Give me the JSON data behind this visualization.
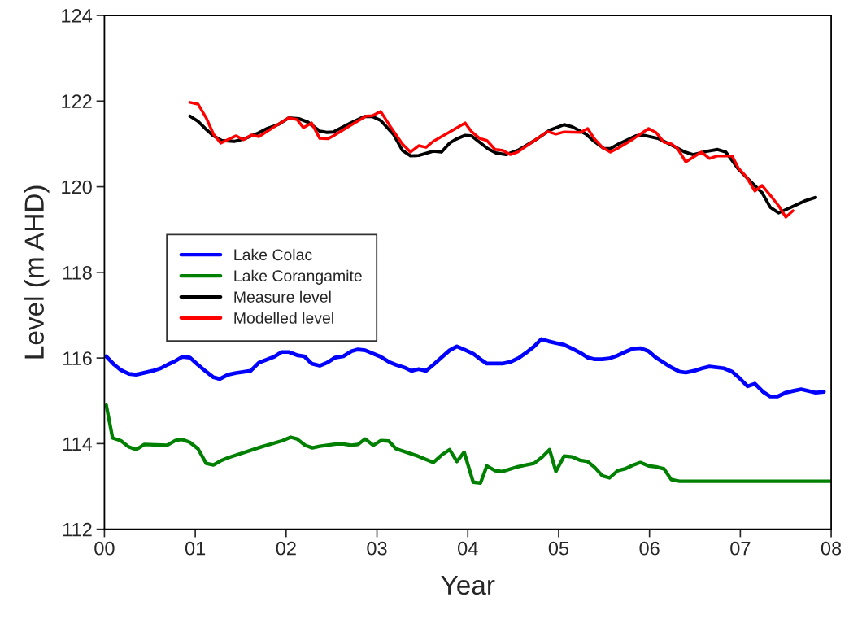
{
  "chart_data": {
    "type": "line",
    "xlabel": "Year",
    "ylabel": "Level (m AHD)",
    "xlim": [
      0,
      8
    ],
    "xticks": [
      {
        "value": 0,
        "label": "00"
      },
      {
        "value": 1,
        "label": "01"
      },
      {
        "value": 2,
        "label": "02"
      },
      {
        "value": 3,
        "label": "03"
      },
      {
        "value": 4,
        "label": "04"
      },
      {
        "value": 5,
        "label": "05"
      },
      {
        "value": 6,
        "label": "06"
      },
      {
        "value": 7,
        "label": "07"
      },
      {
        "value": 8,
        "label": "08"
      }
    ],
    "ylim": [
      112,
      124
    ],
    "yticks": [
      112,
      114,
      116,
      118,
      120,
      122,
      124
    ],
    "grid": false,
    "legend": "left",
    "marker": "none",
    "line_style": "solid",
    "series": [
      {
        "name": "Lake Colac",
        "color": "#0000ff",
        "x": [
          0.02,
          0.11,
          0.18,
          0.27,
          0.35,
          0.53,
          0.62,
          0.7,
          0.78,
          0.86,
          0.94,
          1.03,
          1.12,
          1.2,
          1.27,
          1.36,
          1.45,
          1.61,
          1.7,
          1.87,
          1.95,
          2.03,
          2.13,
          2.2,
          2.28,
          2.37,
          2.45,
          2.54,
          2.63,
          2.72,
          2.79,
          2.87,
          3.04,
          3.13,
          3.21,
          3.3,
          3.38,
          3.46,
          3.54,
          3.62,
          3.71,
          3.8,
          3.88,
          3.96,
          4.06,
          4.14,
          4.21,
          4.38,
          4.47,
          4.56,
          4.64,
          4.73,
          4.81,
          4.89,
          4.97,
          5.06,
          5.15,
          5.24,
          5.32,
          5.4,
          5.48,
          5.56,
          5.65,
          5.73,
          5.82,
          5.9,
          5.99,
          6.07,
          6.16,
          6.24,
          6.33,
          6.4,
          6.49,
          6.58,
          6.66,
          6.82,
          6.91,
          6.99,
          7.08,
          7.16,
          7.25,
          7.33,
          7.41,
          7.5,
          7.58,
          7.67,
          7.83,
          7.92
        ],
        "values": [
          116.04,
          115.84,
          115.72,
          115.63,
          115.61,
          115.7,
          115.76,
          115.85,
          115.93,
          116.03,
          116.01,
          115.84,
          115.68,
          115.55,
          115.51,
          115.61,
          115.65,
          115.7,
          115.89,
          116.03,
          116.14,
          116.14,
          116.06,
          116.04,
          115.87,
          115.82,
          115.89,
          116.01,
          116.04,
          116.16,
          116.2,
          116.18,
          116.03,
          115.91,
          115.84,
          115.78,
          115.7,
          115.74,
          115.7,
          115.84,
          116.01,
          116.18,
          116.27,
          116.2,
          116.1,
          115.97,
          115.87,
          115.87,
          115.91,
          116.0,
          116.12,
          116.27,
          116.44,
          116.39,
          116.35,
          116.31,
          116.22,
          116.12,
          116.01,
          115.97,
          115.97,
          115.99,
          116.06,
          116.14,
          116.22,
          116.23,
          116.16,
          116.01,
          115.89,
          115.78,
          115.68,
          115.66,
          115.7,
          115.76,
          115.8,
          115.76,
          115.68,
          115.53,
          115.34,
          115.4,
          115.21,
          115.1,
          115.1,
          115.19,
          115.23,
          115.27,
          115.19,
          115.21
        ]
      },
      {
        "name": "Lake Corangamite",
        "color": "#008000",
        "x": [
          0.02,
          0.09,
          0.18,
          0.27,
          0.35,
          0.44,
          0.69,
          0.78,
          0.85,
          0.94,
          1.03,
          1.12,
          1.2,
          1.29,
          1.36,
          1.72,
          1.96,
          2.05,
          2.12,
          2.21,
          2.29,
          2.37,
          2.55,
          2.63,
          2.72,
          2.79,
          2.87,
          2.96,
          3.04,
          3.13,
          3.21,
          3.45,
          3.62,
          3.71,
          3.8,
          3.88,
          3.96,
          4.06,
          4.14,
          4.21,
          4.3,
          4.38,
          4.55,
          4.64,
          4.73,
          4.82,
          4.9,
          4.97,
          5.06,
          5.15,
          5.24,
          5.32,
          5.4,
          5.48,
          5.56,
          5.65,
          5.73,
          5.82,
          5.9,
          5.99,
          6.07,
          6.16,
          6.24,
          6.33,
          8.0
        ],
        "values": [
          114.9,
          114.13,
          114.07,
          113.92,
          113.86,
          113.98,
          113.96,
          114.07,
          114.1,
          114.03,
          113.88,
          113.54,
          113.5,
          113.61,
          113.67,
          113.92,
          114.07,
          114.15,
          114.11,
          113.96,
          113.9,
          113.94,
          113.99,
          113.99,
          113.96,
          113.98,
          114.11,
          113.96,
          114.07,
          114.06,
          113.88,
          113.71,
          113.56,
          113.73,
          113.86,
          113.58,
          113.8,
          113.1,
          113.08,
          113.48,
          113.37,
          113.35,
          113.46,
          113.5,
          113.54,
          113.69,
          113.86,
          113.35,
          113.71,
          113.69,
          113.61,
          113.58,
          113.44,
          113.25,
          113.2,
          113.37,
          113.41,
          113.5,
          113.56,
          113.48,
          113.46,
          113.41,
          113.16,
          113.12,
          113.12
        ]
      },
      {
        "name": "Measure level",
        "color": "#000000",
        "x": [
          0.94,
          1.03,
          1.11,
          1.2,
          1.29,
          1.43,
          1.54,
          1.69,
          1.79,
          1.92,
          2.03,
          2.14,
          2.24,
          2.37,
          2.45,
          2.52,
          2.7,
          2.86,
          2.95,
          3.04,
          3.18,
          3.28,
          3.37,
          3.46,
          3.62,
          3.71,
          3.8,
          3.87,
          3.97,
          4.04,
          4.22,
          4.31,
          4.42,
          4.55,
          4.72,
          4.9,
          5.06,
          5.15,
          5.3,
          5.39,
          5.5,
          5.57,
          5.66,
          5.85,
          5.92,
          6.09,
          6.22,
          6.39,
          6.48,
          6.64,
          6.75,
          6.84,
          6.98,
          7.09,
          7.24,
          7.33,
          7.42,
          7.56,
          7.71,
          7.83
        ],
        "values": [
          121.65,
          121.53,
          121.36,
          121.19,
          121.08,
          121.06,
          121.12,
          121.25,
          121.36,
          121.46,
          121.61,
          121.59,
          121.51,
          121.3,
          121.27,
          121.28,
          121.48,
          121.64,
          121.64,
          121.55,
          121.23,
          120.85,
          120.72,
          120.73,
          120.83,
          120.81,
          121.02,
          121.11,
          121.2,
          121.19,
          120.89,
          120.79,
          120.75,
          120.85,
          121.06,
          121.32,
          121.45,
          121.4,
          121.23,
          121.06,
          120.89,
          120.89,
          121.0,
          121.19,
          121.21,
          121.13,
          121.0,
          120.81,
          120.75,
          120.83,
          120.87,
          120.81,
          120.41,
          120.17,
          119.86,
          119.52,
          119.39,
          119.52,
          119.67,
          119.75
        ]
      },
      {
        "name": "Modelled level",
        "color": "#ff0000",
        "x": [
          0.94,
          1.03,
          1.12,
          1.2,
          1.28,
          1.36,
          1.45,
          1.53,
          1.62,
          1.7,
          1.87,
          2.03,
          2.12,
          2.19,
          2.28,
          2.37,
          2.46,
          2.52,
          2.7,
          2.88,
          2.95,
          3.04,
          3.15,
          3.28,
          3.37,
          3.46,
          3.54,
          3.62,
          3.8,
          3.97,
          4.04,
          4.13,
          4.21,
          4.3,
          4.38,
          4.47,
          4.55,
          4.72,
          4.88,
          4.97,
          5.06,
          5.24,
          5.32,
          5.39,
          5.48,
          5.57,
          5.66,
          5.81,
          5.99,
          6.07,
          6.16,
          6.24,
          6.31,
          6.4,
          6.57,
          6.66,
          6.75,
          6.91,
          6.98,
          7.07,
          7.16,
          7.24,
          7.33,
          7.42,
          7.5,
          7.58
        ],
        "values": [
          121.97,
          121.93,
          121.61,
          121.23,
          121.02,
          121.1,
          121.19,
          121.1,
          121.21,
          121.17,
          121.4,
          121.61,
          121.57,
          121.38,
          121.49,
          121.13,
          121.12,
          121.19,
          121.42,
          121.65,
          121.66,
          121.76,
          121.4,
          121.0,
          120.81,
          120.96,
          120.92,
          121.06,
          121.28,
          121.49,
          121.29,
          121.13,
          121.08,
          120.87,
          120.85,
          120.75,
          120.81,
          121.06,
          121.29,
          121.23,
          121.28,
          121.27,
          121.36,
          121.13,
          120.92,
          120.81,
          120.91,
          121.1,
          121.36,
          121.27,
          121.04,
          121.0,
          120.89,
          120.58,
          120.81,
          120.66,
          120.72,
          120.72,
          120.43,
          120.22,
          119.9,
          120.03,
          119.8,
          119.56,
          119.29,
          119.44
        ]
      }
    ]
  }
}
